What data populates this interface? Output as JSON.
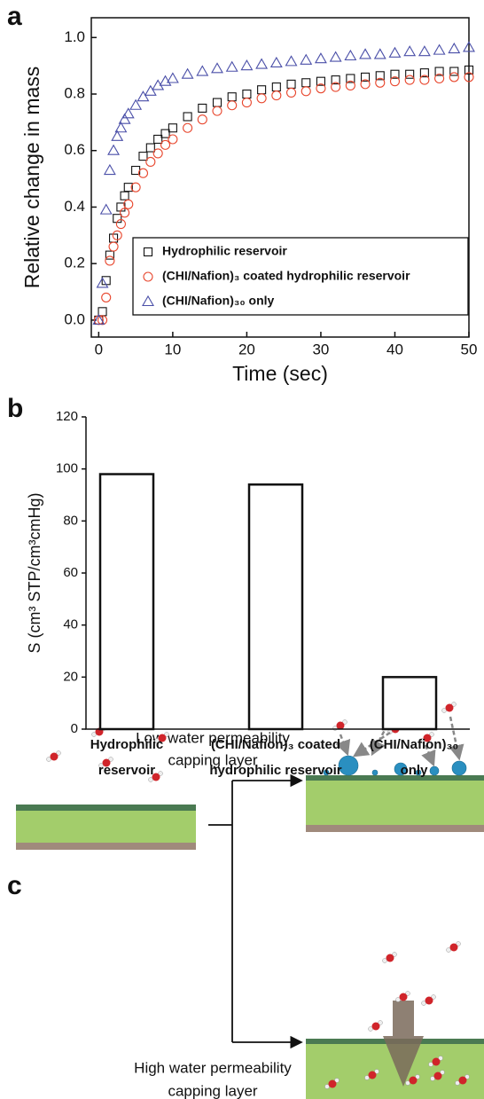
{
  "chart_data": [
    {
      "type": "scatter",
      "panel_label": "a",
      "x_label": "Time (sec)",
      "y_label": "Relative change in mass",
      "xlim": [
        -1,
        50
      ],
      "xticks": [
        0,
        10,
        20,
        30,
        40,
        50
      ],
      "ylim": [
        -0.06,
        1.07
      ],
      "yticks": [
        {
          "value": 0,
          "label": "0.0"
        },
        0.2,
        0.4,
        0.6,
        0.8,
        {
          "value": 1,
          "label": "1.0"
        }
      ],
      "legend": "lower right",
      "x": [
        0,
        0.5,
        1,
        1.5,
        2,
        2.5,
        3,
        3.5,
        4,
        5,
        6,
        7,
        8,
        9,
        10,
        12,
        14,
        16,
        18,
        20,
        22,
        24,
        26,
        28,
        30,
        32,
        34,
        36,
        38,
        40,
        42,
        44,
        46,
        48,
        50
      ],
      "series": [
        {
          "name": "Hydrophilic reservoir",
          "color": "#111111",
          "marker": "square",
          "values": [
            0,
            0.03,
            0.14,
            0.23,
            0.29,
            0.36,
            0.4,
            0.44,
            0.47,
            0.53,
            0.58,
            0.61,
            0.64,
            0.66,
            0.68,
            0.72,
            0.75,
            0.77,
            0.79,
            0.8,
            0.815,
            0.825,
            0.835,
            0.84,
            0.845,
            0.85,
            0.855,
            0.86,
            0.865,
            0.87,
            0.87,
            0.875,
            0.88,
            0.88,
            0.885
          ]
        },
        {
          "name": "(CHI/Nafion)₃ coated hydrophilic reservoir",
          "color": "#e8472e",
          "marker": "circle",
          "values": [
            0,
            0,
            0.08,
            0.21,
            0.26,
            0.3,
            0.34,
            0.38,
            0.41,
            0.47,
            0.52,
            0.56,
            0.59,
            0.62,
            0.64,
            0.68,
            0.71,
            0.74,
            0.76,
            0.77,
            0.785,
            0.795,
            0.805,
            0.81,
            0.82,
            0.825,
            0.83,
            0.835,
            0.84,
            0.845,
            0.85,
            0.85,
            0.855,
            0.86,
            0.86
          ]
        },
        {
          "name": "(CHI/Nafion)₃₀ only",
          "color": "#4a4fa8",
          "marker": "triangle",
          "values": [
            0,
            0.13,
            0.39,
            0.53,
            0.6,
            0.65,
            0.68,
            0.71,
            0.73,
            0.76,
            0.79,
            0.81,
            0.83,
            0.845,
            0.855,
            0.87,
            0.88,
            0.89,
            0.895,
            0.9,
            0.905,
            0.91,
            0.915,
            0.92,
            0.925,
            0.93,
            0.935,
            0.94,
            0.94,
            0.945,
            0.95,
            0.95,
            0.955,
            0.96,
            0.965
          ]
        }
      ]
    },
    {
      "type": "bar",
      "panel_label": "b",
      "y_label": "S (cm³ STP/cm³cmHg)",
      "ylim": [
        0,
        120
      ],
      "yticks": [
        0,
        20,
        40,
        60,
        80,
        100,
        120
      ],
      "color": "#111111",
      "categories": [
        [
          "Hydrophilic",
          "reservoir"
        ],
        [
          "(CHI/Nafion)₃ coated",
          "hydrophilic reservoir"
        ],
        [
          "(CHI/Nafion)₃₀",
          "only"
        ]
      ],
      "values": [
        98,
        94,
        20
      ]
    }
  ],
  "diagram": {
    "panel_label": "c",
    "low_label": [
      "Low water permeability",
      "capping layer"
    ],
    "high_label": [
      "High water permeability",
      "capping layer"
    ]
  }
}
